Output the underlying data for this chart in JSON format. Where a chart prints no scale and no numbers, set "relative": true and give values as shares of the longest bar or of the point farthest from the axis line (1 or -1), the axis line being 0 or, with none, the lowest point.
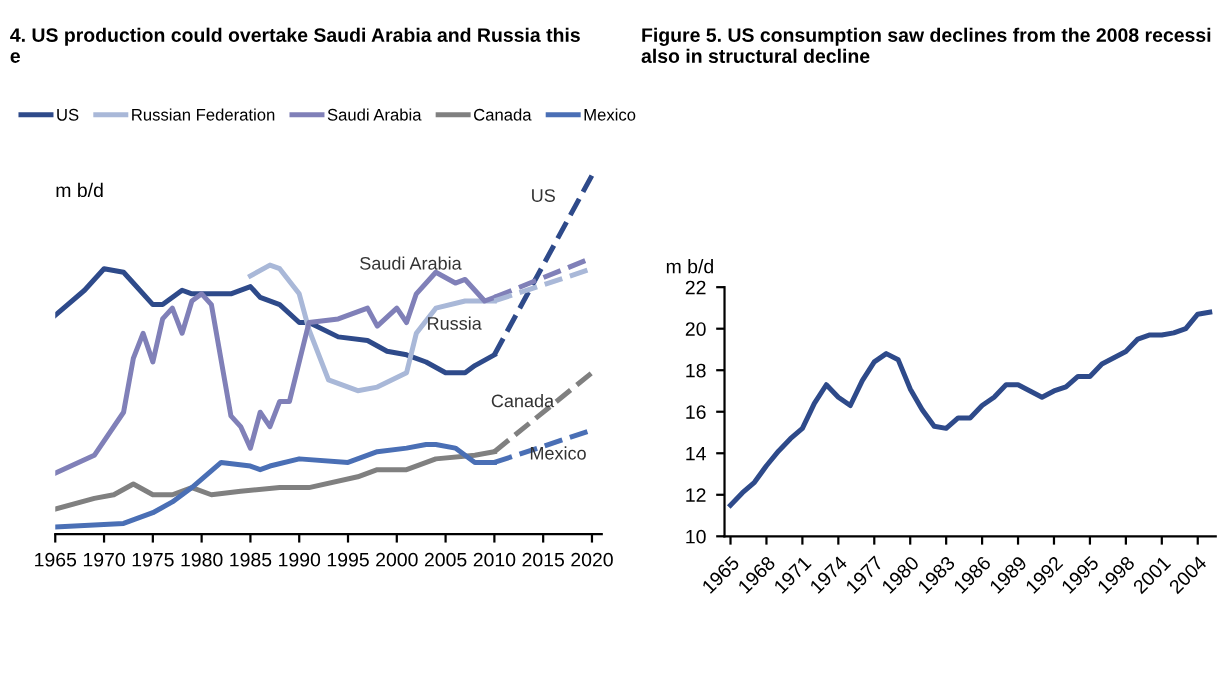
{
  "chart_data": [
    {
      "type": "line",
      "title": "4. US production could overtake Saudi Arabia and Russia this\ne",
      "ylabel": "m b/d",
      "relative": true,
      "legend": "top",
      "grid": false,
      "xlim": [
        1965,
        2021
      ],
      "xticks": [
        1965,
        1970,
        1975,
        1980,
        1985,
        1990,
        1995,
        2000,
        2005,
        2010,
        2015,
        2020
      ],
      "series": [
        {
          "name": "US",
          "color": "#2e4a8a",
          "x": [
            1965,
            1968,
            1970,
            1972,
            1973,
            1975,
            1976,
            1978,
            1979,
            1983,
            1985,
            1986,
            1988,
            1990,
            1991,
            1994,
            1997,
            1999,
            2001,
            2003,
            2005,
            2007,
            2008,
            2010
          ],
          "values": [
            0.61,
            0.68,
            0.74,
            0.73,
            0.7,
            0.64,
            0.64,
            0.68,
            0.67,
            0.67,
            0.69,
            0.66,
            0.64,
            0.59,
            0.59,
            0.55,
            0.54,
            0.51,
            0.5,
            0.48,
            0.45,
            0.45,
            0.47,
            0.5
          ]
        },
        {
          "name": "Russian Federation",
          "color": "#a9b8d8",
          "x": [
            1985,
            1987,
            1988,
            1990,
            1991,
            1993,
            1996,
            1998,
            2001,
            2002,
            2004,
            2007,
            2010
          ],
          "values": [
            0.72,
            0.75,
            0.74,
            0.67,
            0.57,
            0.43,
            0.4,
            0.41,
            0.45,
            0.56,
            0.63,
            0.65,
            0.65
          ]
        },
        {
          "name": "Saudi Arabia",
          "color": "#8080b8",
          "x": [
            1965,
            1969,
            1972,
            1973,
            1974,
            1975,
            1976,
            1977,
            1978,
            1979,
            1980,
            1981,
            1983,
            1984,
            1985,
            1986,
            1987,
            1988,
            1989,
            1991,
            1994,
            1997,
            1998,
            2000,
            2001,
            2002,
            2004,
            2006,
            2007,
            2009,
            2010
          ],
          "values": [
            0.17,
            0.22,
            0.34,
            0.49,
            0.56,
            0.48,
            0.6,
            0.63,
            0.56,
            0.65,
            0.67,
            0.64,
            0.33,
            0.3,
            0.24,
            0.34,
            0.3,
            0.37,
            0.37,
            0.59,
            0.6,
            0.63,
            0.58,
            0.63,
            0.59,
            0.67,
            0.73,
            0.7,
            0.71,
            0.65,
            0.66
          ]
        },
        {
          "name": "Canada",
          "color": "#808080",
          "x": [
            1965,
            1969,
            1971,
            1973,
            1975,
            1977,
            1979,
            1981,
            1984,
            1988,
            1991,
            1996,
            1998,
            2001,
            2004,
            2008,
            2010
          ],
          "values": [
            0.07,
            0.1,
            0.11,
            0.14,
            0.11,
            0.11,
            0.13,
            0.11,
            0.12,
            0.13,
            0.13,
            0.16,
            0.18,
            0.18,
            0.21,
            0.22,
            0.23
          ]
        },
        {
          "name": "Mexico",
          "color": "#4a6fb5",
          "x": [
            1965,
            1972,
            1975,
            1977,
            1979,
            1982,
            1985,
            1986,
            1987,
            1990,
            1995,
            1998,
            2001,
            2003,
            2004,
            2006,
            2008,
            2010
          ],
          "values": [
            0.02,
            0.03,
            0.06,
            0.09,
            0.13,
            0.2,
            0.19,
            0.18,
            0.19,
            0.21,
            0.2,
            0.23,
            0.24,
            0.25,
            0.25,
            0.24,
            0.2,
            0.2
          ]
        },
        {
          "color": "#2e4a8a",
          "line_style": "dashed",
          "x": [
            2010,
            2020
          ],
          "values": [
            0.5,
            1.0
          ]
        },
        {
          "color": "#8080b8",
          "line_style": "dashed",
          "x": [
            2010,
            2020
          ],
          "values": [
            0.66,
            0.77
          ]
        },
        {
          "color": "#a9b8d8",
          "line_style": "dashed",
          "x": [
            2010,
            2020
          ],
          "values": [
            0.65,
            0.74
          ]
        },
        {
          "color": "#808080",
          "line_style": "dashed",
          "x": [
            2010,
            2020
          ],
          "values": [
            0.23,
            0.45
          ]
        },
        {
          "color": "#4a6fb5",
          "line_style": "dashed",
          "x": [
            2010,
            2020
          ],
          "values": [
            0.2,
            0.29
          ]
        }
      ],
      "annotations": [
        "US",
        "Saudi Arabia",
        "Russia",
        "Canada",
        "Mexico"
      ]
    },
    {
      "type": "line",
      "title": "Figure 5. US consumption saw declines from the 2008 recessi\nalso in structural decline",
      "ylabel": "m b/d",
      "grid": false,
      "xlim": [
        1964.5,
        2005.5
      ],
      "xticks": [
        1965,
        1968,
        1971,
        1974,
        1977,
        1980,
        1983,
        1986,
        1989,
        1992,
        1995,
        1998,
        2001,
        2004
      ],
      "ylim": [
        10,
        22
      ],
      "yticks": [
        10,
        12,
        14,
        16,
        18,
        20,
        22
      ],
      "series": [
        {
          "color": "#2e4a8a",
          "x": [
            1965,
            1966,
            1967,
            1968,
            1969,
            1970,
            1971,
            1972,
            1973,
            1974,
            1975,
            1976,
            1977,
            1978,
            1979,
            1980,
            1981,
            1982,
            1983,
            1984,
            1985,
            1986,
            1987,
            1988,
            1989,
            1990,
            1991,
            1992,
            1993,
            1994,
            1995,
            1996,
            1997,
            1998,
            1999,
            2000,
            2001,
            2002,
            2003,
            2004,
            2005
          ],
          "values": [
            11.5,
            12.1,
            12.6,
            13.4,
            14.1,
            14.7,
            15.2,
            16.4,
            17.3,
            16.7,
            16.3,
            17.5,
            18.4,
            18.8,
            18.5,
            17.1,
            16.1,
            15.3,
            15.2,
            15.7,
            15.7,
            16.3,
            16.7,
            17.3,
            17.3,
            17.0,
            16.7,
            17.0,
            17.2,
            17.7,
            17.7,
            18.3,
            18.6,
            18.9,
            19.5,
            19.7,
            19.7,
            19.8,
            20.0,
            20.7,
            20.8
          ]
        }
      ]
    }
  ]
}
